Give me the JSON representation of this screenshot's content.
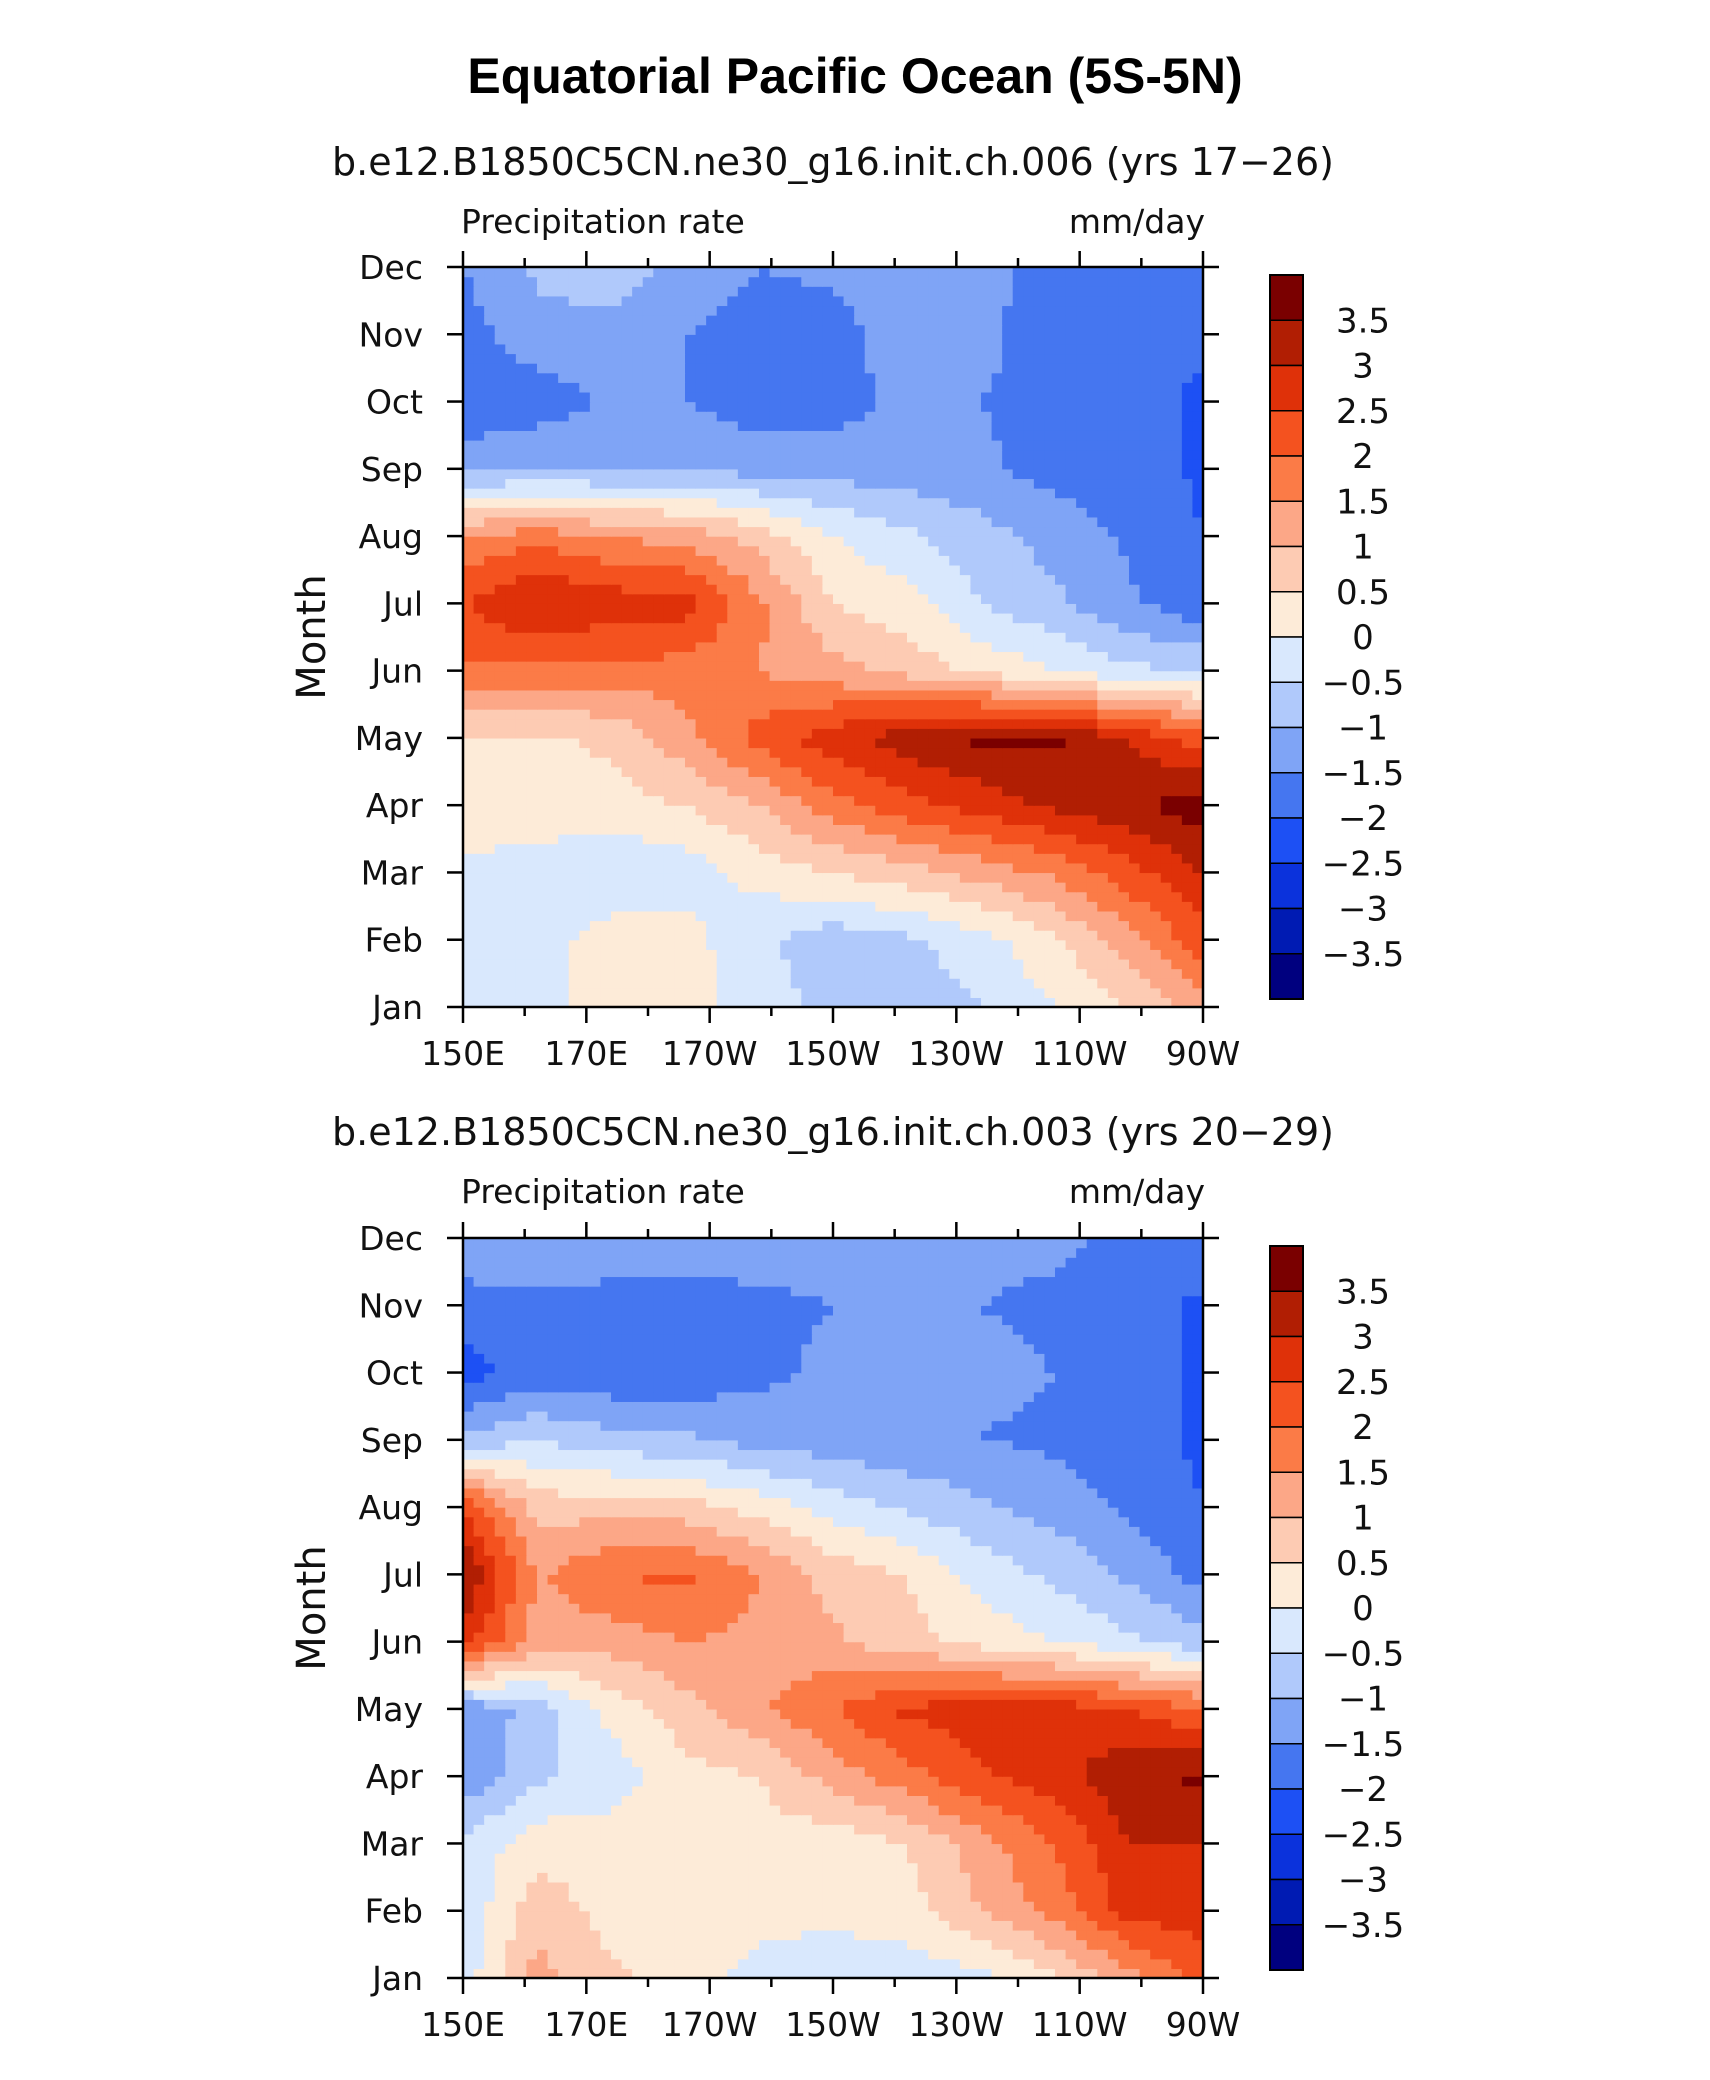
{
  "title": "Equatorial Pacific Ocean (5S-5N)",
  "chart_data": [
    {
      "type": "heatmap",
      "title": "b.e12.B1850C5CN.ne30_g16.init.ch.006 (yrs 17−26)",
      "left_label": "Precipitation rate",
      "right_label": "mm/day",
      "ylabel": "Month",
      "x_ticks": [
        "150E",
        "170E",
        "170W",
        "150W",
        "130W",
        "110W",
        "90W"
      ],
      "y_ticks": [
        "Jan",
        "Feb",
        "Mar",
        "Apr",
        "May",
        "Jun",
        "Jul",
        "Aug",
        "Sep",
        "Oct",
        "Nov",
        "Dec"
      ],
      "colorbar_labels": [
        "3.5",
        "3",
        "2.5",
        "2",
        "1.5",
        "1",
        "0.5",
        "0",
        "−0.5",
        "−1",
        "−1.5",
        "−2",
        "−2.5",
        "−3",
        "−3.5"
      ],
      "z": [
        [
          -0.3,
          -0.3,
          0.3,
          0.3,
          -0.3,
          -0.6,
          -0.8,
          -0.5,
          0.0,
          0.5,
          1.3
        ],
        [
          -0.3,
          -0.3,
          0.3,
          0.2,
          -0.4,
          -0.8,
          -0.6,
          -0.2,
          0.4,
          1.3,
          2.3
        ],
        [
          -0.2,
          -0.4,
          -0.5,
          -0.3,
          0.2,
          0.5,
          0.8,
          1.2,
          1.6,
          2.3,
          3.0
        ],
        [
          0.5,
          0.5,
          0.3,
          0.5,
          1.0,
          1.8,
          2.3,
          2.7,
          3.1,
          3.4,
          3.8
        ],
        [
          0.4,
          0.4,
          0.6,
          1.3,
          2.2,
          2.8,
          3.3,
          3.6,
          3.6,
          3.0,
          2.2
        ],
        [
          1.9,
          1.8,
          1.8,
          1.8,
          1.5,
          1.2,
          0.8,
          0.4,
          0.0,
          -0.4,
          -0.5
        ],
        [
          2.5,
          3.1,
          2.8,
          2.7,
          1.6,
          0.5,
          0.2,
          -0.5,
          -0.9,
          -1.4,
          -1.9
        ],
        [
          1.5,
          1.8,
          1.5,
          1.3,
          0.8,
          0.0,
          -0.4,
          -0.8,
          -1.2,
          -1.6,
          -2.0
        ],
        [
          -1.2,
          -1.0,
          -1.1,
          -1.0,
          -1.2,
          -1.2,
          -1.3,
          -1.4,
          -1.7,
          -1.7,
          -2.1
        ],
        [
          -1.9,
          -1.8,
          -1.4,
          -1.5,
          -1.8,
          -1.7,
          -1.4,
          -1.5,
          -1.7,
          -1.8,
          -2.1
        ],
        [
          -1.7,
          -1.2,
          -1.2,
          -1.5,
          -1.7,
          -1.7,
          -1.2,
          -1.3,
          -1.9,
          -1.8,
          -1.9
        ],
        [
          -1.5,
          -0.9,
          -0.7,
          -1.2,
          -1.5,
          -1.4,
          -1.2,
          -1.3,
          -1.8,
          -1.7,
          -1.6
        ]
      ]
    },
    {
      "type": "heatmap",
      "title": "b.e12.B1850C5CN.ne30_g16.init.ch.003 (yrs 20−29)",
      "left_label": "Precipitation rate",
      "right_label": "mm/day",
      "ylabel": "Month",
      "x_ticks": [
        "150E",
        "170E",
        "170W",
        "150W",
        "130W",
        "110W",
        "90W"
      ],
      "y_ticks": [
        "Jan",
        "Feb",
        "Mar",
        "Apr",
        "May",
        "Jun",
        "Jul",
        "Aug",
        "Sep",
        "Oct",
        "Nov",
        "Dec"
      ],
      "colorbar_labels": [
        "3.5",
        "3",
        "2.5",
        "2",
        "1.5",
        "1",
        "0.5",
        "0",
        "−0.5",
        "−1",
        "−1.5",
        "−2",
        "−2.5",
        "−3",
        "−3.5"
      ],
      "z": [
        [
          -0.3,
          1.2,
          0.6,
          0.3,
          -0.2,
          -0.3,
          -0.3,
          -0.2,
          0.4,
          1.3,
          2.3
        ],
        [
          -0.4,
          0.8,
          0.3,
          0.4,
          0.2,
          0.1,
          0.3,
          1.0,
          1.7,
          2.7,
          2.7
        ],
        [
          -0.4,
          0.3,
          0.3,
          0.4,
          0.3,
          0.2,
          0.5,
          1.3,
          2.0,
          3.0,
          3.0
        ],
        [
          -1.4,
          -0.6,
          -0.3,
          0.3,
          0.5,
          1.2,
          1.8,
          2.4,
          2.8,
          3.4,
          3.6
        ],
        [
          -1.4,
          -0.8,
          0.2,
          0.8,
          1.4,
          2.0,
          2.6,
          2.8,
          2.8,
          2.5,
          2.0
        ],
        [
          2.7,
          1.3,
          1.2,
          1.5,
          1.4,
          1.1,
          0.7,
          0.3,
          0.0,
          -0.4,
          -0.8
        ],
        [
          3.6,
          1.4,
          2.0,
          2.1,
          1.5,
          0.8,
          0.5,
          -0.2,
          -0.6,
          -1.1,
          -1.7
        ],
        [
          2.5,
          0.8,
          0.8,
          0.7,
          0.3,
          -0.2,
          -0.6,
          -0.9,
          -1.2,
          -1.6,
          -2.0
        ],
        [
          -0.9,
          -0.5,
          -0.8,
          -0.9,
          -1.2,
          -1.3,
          -1.4,
          -1.5,
          -1.6,
          -1.8,
          -2.1
        ],
        [
          -2.2,
          -1.8,
          -1.9,
          -1.9,
          -1.6,
          -1.4,
          -1.4,
          -1.4,
          -1.5,
          -1.8,
          -2.1
        ],
        [
          -1.7,
          -1.6,
          -1.8,
          -1.7,
          -1.6,
          -1.5,
          -1.4,
          -1.5,
          -1.6,
          -1.8,
          -2.1
        ],
        [
          -1.2,
          -1.1,
          -1.0,
          -1.2,
          -1.3,
          -1.3,
          -1.3,
          -1.4,
          -1.4,
          -1.6,
          -1.6
        ]
      ]
    }
  ],
  "levels": [
    -3.5,
    -3,
    -2.5,
    -2,
    -1.5,
    -1,
    -0.5,
    0,
    0.5,
    1,
    1.5,
    2,
    2.5,
    3,
    3.5
  ],
  "colors": [
    "#00007f",
    "#001bb3",
    "#0b32dc",
    "#1d50f4",
    "#4576f0",
    "#7fa4f6",
    "#b0c9fb",
    "#d9e8fd",
    "#fdebd8",
    "#fdcbb3",
    "#fca787",
    "#fb7b47",
    "#f4521f",
    "#df3109",
    "#b11e03",
    "#7a0000"
  ]
}
